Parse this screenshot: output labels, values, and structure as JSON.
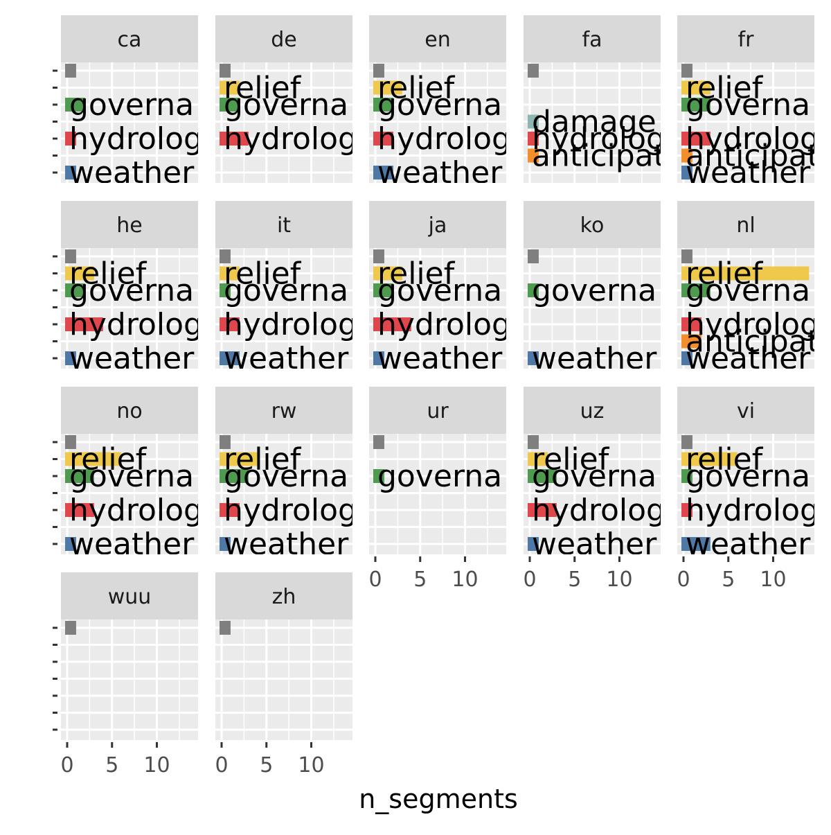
{
  "chart_data": {
    "type": "bar",
    "orientation": "horizontal",
    "layout": "facet_wrap",
    "ncol": 5,
    "xlabel": "n_segments",
    "ylabel": "",
    "xlim": [
      0,
      14
    ],
    "x_ticks": [
      0,
      5,
      10
    ],
    "categories": [
      "unlabeled",
      "relief",
      "governance",
      "damage",
      "hydrology",
      "anticipatory",
      "weather"
    ],
    "category_colors": {
      "unlabeled": "#7f7f7f",
      "relief": "#EFC94C",
      "governance": "#4E9A4E",
      "damage": "#8DB6B3",
      "hydrology": "#E0474C",
      "anticipatory": "#F28E2B",
      "weather": "#4E79A7"
    },
    "category_display": {
      "unlabeled": "",
      "relief": "relief",
      "governance": "governa",
      "damage": "damage",
      "hydrology": "hydrolog",
      "anticipatory": "anticipat",
      "weather": "weather"
    },
    "grid": true,
    "panels": [
      {
        "name": "ca",
        "values": {
          "unlabeled": 1,
          "governance": 2,
          "hydrology": 1,
          "weather": 1
        }
      },
      {
        "name": "de",
        "values": {
          "unlabeled": 1,
          "relief": 2,
          "governance": 2,
          "hydrology": 3
        }
      },
      {
        "name": "en",
        "values": {
          "unlabeled": 1,
          "relief": 3,
          "governance": 2,
          "hydrology": 2,
          "weather": 2
        }
      },
      {
        "name": "fa",
        "values": {
          "unlabeled": 1,
          "damage": 1,
          "hydrology": 1,
          "anticipatory": 1
        }
      },
      {
        "name": "fr",
        "values": {
          "unlabeled": 1,
          "relief": 3,
          "governance": 3,
          "hydrology": 3,
          "anticipatory": 1,
          "weather": 1
        }
      },
      {
        "name": "he",
        "values": {
          "unlabeled": 1,
          "relief": 3,
          "governance": 2,
          "hydrology": 4,
          "weather": 1
        }
      },
      {
        "name": "it",
        "values": {
          "unlabeled": 1,
          "relief": 2,
          "governance": 1,
          "hydrology": 2,
          "weather": 2
        }
      },
      {
        "name": "ja",
        "values": {
          "unlabeled": 1,
          "relief": 3,
          "governance": 2,
          "hydrology": 4,
          "weather": 1
        }
      },
      {
        "name": "ko",
        "values": {
          "unlabeled": 1,
          "governance": 1,
          "weather": 1
        }
      },
      {
        "name": "nl",
        "values": {
          "unlabeled": 1,
          "relief": 14,
          "governance": 3,
          "hydrology": 2,
          "anticipatory": 2,
          "weather": 1
        }
      },
      {
        "name": "no",
        "values": {
          "unlabeled": 1,
          "relief": 6,
          "governance": 3,
          "hydrology": 3,
          "weather": 1
        }
      },
      {
        "name": "rw",
        "values": {
          "unlabeled": 1,
          "relief": 4,
          "governance": 3,
          "hydrology": 2,
          "weather": 1
        }
      },
      {
        "name": "ur",
        "values": {
          "unlabeled": 1,
          "governance": 1
        }
      },
      {
        "name": "uz",
        "values": {
          "unlabeled": 1,
          "relief": 2,
          "governance": 3,
          "hydrology": 3,
          "weather": 1
        }
      },
      {
        "name": "vi",
        "values": {
          "unlabeled": 1,
          "relief": 6,
          "governance": 1,
          "hydrology": 1,
          "weather": 3
        }
      },
      {
        "name": "wuu",
        "values": {
          "unlabeled": 1
        }
      },
      {
        "name": "zh",
        "values": {
          "unlabeled": 1
        }
      }
    ]
  }
}
